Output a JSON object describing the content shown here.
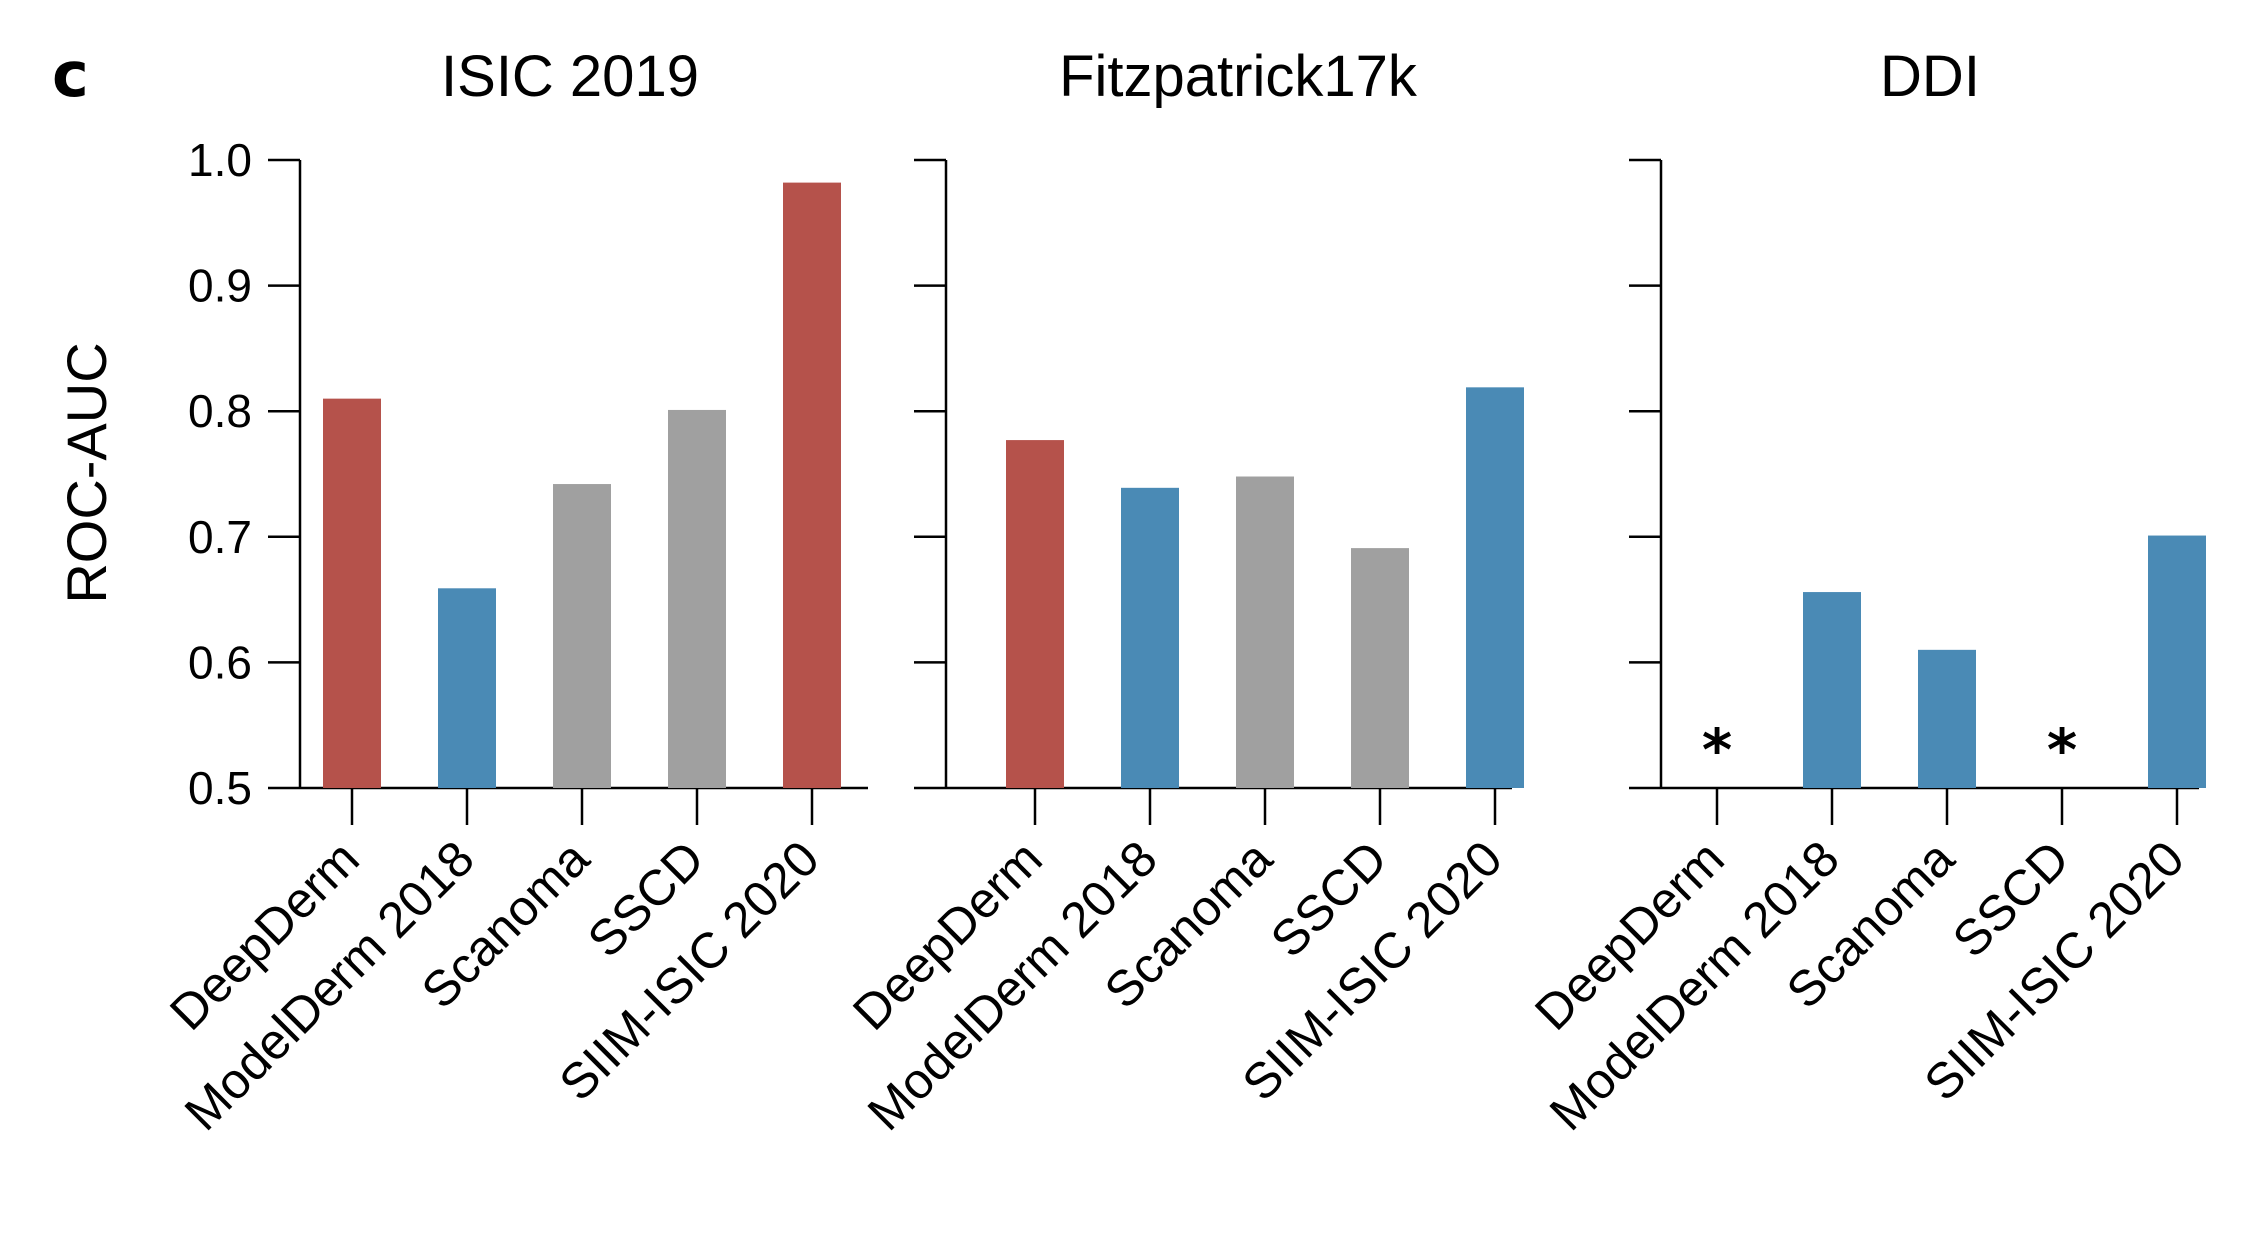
{
  "panel_letter": "c",
  "colors": {
    "red": "#b5524b",
    "blue": "#4a8ab5",
    "gray": "#a0a0a0"
  },
  "chart_data": [
    {
      "type": "bar",
      "title": "ISIC 2019",
      "ylabel": "ROC-AUC",
      "ylim": [
        0.5,
        1.0
      ],
      "yticks": [
        "0.5",
        "0.6",
        "0.7",
        "0.8",
        "0.9",
        "1.0"
      ],
      "categories": [
        "DeepDerm",
        "ModelDerm 2018",
        "Scanoma",
        "SSCD",
        "SIIM-ISIC 2020"
      ],
      "values": [
        0.81,
        0.659,
        0.742,
        0.801,
        0.982
      ],
      "bar_colors": [
        "#b5524b",
        "#4a8ab5",
        "#a0a0a0",
        "#a0a0a0",
        "#b5524b"
      ],
      "markers": [
        "",
        "",
        "",
        "",
        ""
      ]
    },
    {
      "type": "bar",
      "title": "Fitzpatrick17k",
      "ylabel": "",
      "ylim": [
        0.5,
        1.0
      ],
      "yticks": [
        "",
        "",
        "",
        "",
        "",
        ""
      ],
      "categories": [
        "DeepDerm",
        "ModelDerm 2018",
        "Scanoma",
        "SSCD",
        "SIIM-ISIC 2020"
      ],
      "values": [
        0.777,
        0.739,
        0.748,
        0.691,
        0.819
      ],
      "bar_colors": [
        "#b5524b",
        "#4a8ab5",
        "#a0a0a0",
        "#a0a0a0",
        "#4a8ab5"
      ],
      "markers": [
        "",
        "",
        "",
        "",
        ""
      ]
    },
    {
      "type": "bar",
      "title": "DDI",
      "ylabel": "",
      "ylim": [
        0.5,
        1.0
      ],
      "yticks": [
        "",
        "",
        "",
        "",
        "",
        ""
      ],
      "categories": [
        "DeepDerm",
        "ModelDerm 2018",
        "Scanoma",
        "SSCD",
        "SIIM-ISIC 2020"
      ],
      "values": [
        null,
        0.656,
        0.61,
        null,
        0.701
      ],
      "bar_colors": [
        "#4a8ab5",
        "#4a8ab5",
        "#4a8ab5",
        "#4a8ab5",
        "#4a8ab5"
      ],
      "markers": [
        "*",
        "",
        "",
        "*",
        ""
      ]
    }
  ]
}
